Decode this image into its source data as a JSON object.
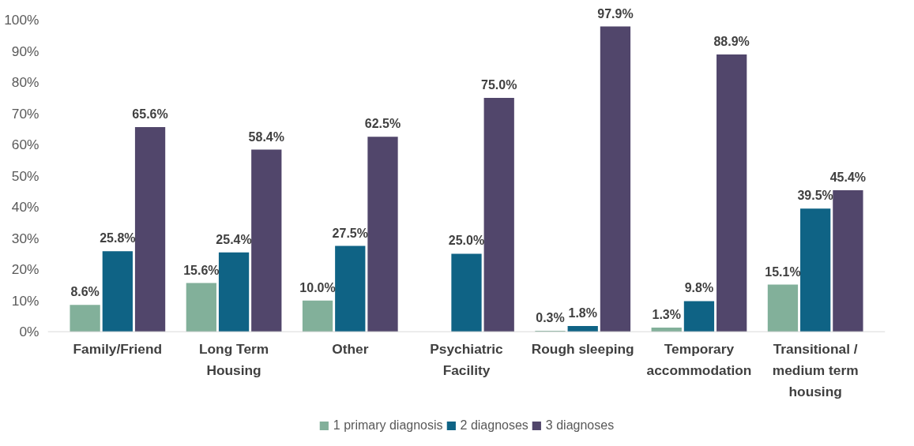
{
  "chart_data": {
    "type": "bar",
    "categories": [
      "Family/Friend",
      "Long Term Housing",
      "Other",
      "Psychiatric Facility",
      "Rough sleeping",
      "Temporary accommodation",
      "Transitional / medium term housing"
    ],
    "series": [
      {
        "name": "1 primary diagnosis",
        "color": "#82b09a",
        "values": [
          8.6,
          15.6,
          10.0,
          null,
          0.3,
          1.3,
          15.1
        ],
        "value_labels": [
          "8.6%",
          "15.6%",
          "10.0%",
          null,
          "0.3%",
          "1.3%",
          "15.1%"
        ]
      },
      {
        "name": "2 diagnoses",
        "color": "#0f6385",
        "values": [
          25.8,
          25.4,
          27.5,
          25.0,
          1.8,
          9.8,
          39.5
        ],
        "value_labels": [
          "25.8%",
          "25.4%",
          "27.5%",
          "25.0%",
          "1.8%",
          "9.8%",
          "39.5%"
        ]
      },
      {
        "name": "3 diagnoses",
        "color": "#51466b",
        "values": [
          65.6,
          58.4,
          62.5,
          75.0,
          97.9,
          88.9,
          45.4
        ],
        "value_labels": [
          "65.6%",
          "58.4%",
          "62.5%",
          "75.0%",
          "97.9%",
          "88.9%",
          "45.4%"
        ]
      }
    ],
    "ylim": [
      0,
      100
    ],
    "yticks": [
      {
        "value": 0,
        "label": "0%"
      },
      {
        "value": 10,
        "label": "10%"
      },
      {
        "value": 20,
        "label": "20%"
      },
      {
        "value": 30,
        "label": "30%"
      },
      {
        "value": 40,
        "label": "40%"
      },
      {
        "value": 50,
        "label": "50%"
      },
      {
        "value": 60,
        "label": "60%"
      },
      {
        "value": 70,
        "label": "70%"
      },
      {
        "value": 80,
        "label": "80%"
      },
      {
        "value": 90,
        "label": "90%"
      },
      {
        "value": 100,
        "label": "100%"
      }
    ],
    "grid": false,
    "legend": "bottom"
  }
}
